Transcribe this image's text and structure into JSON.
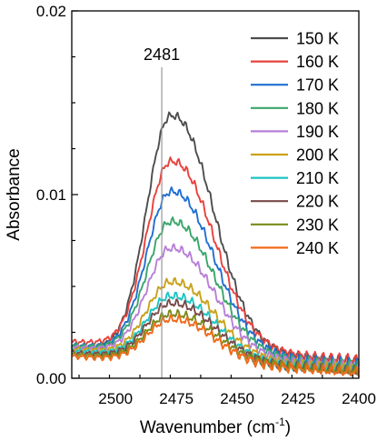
{
  "chart_data": {
    "type": "line",
    "xlabel": "Wavenumber (cm",
    "xlabel_sup": "-1",
    "xlabel_end": ")",
    "ylabel": "Absorbance",
    "xlim": [
      2518,
      2400
    ],
    "ylim": [
      0.0,
      0.02
    ],
    "x_reversed": true,
    "x_ticks": [
      2500,
      2475,
      2450,
      2425,
      2400
    ],
    "x_tick_labels": [
      "2500",
      "2475",
      "2450",
      "2425",
      "2400"
    ],
    "y_ticks": [
      0.0,
      0.01,
      0.02
    ],
    "y_tick_labels": [
      "0.00",
      "0.01",
      "0.02"
    ],
    "grid": false,
    "legend_position": "top-right",
    "reference_line": {
      "x": 2481,
      "label": "2481"
    },
    "peak_x": 2478,
    "series": [
      {
        "name": "150 K",
        "color": "#4d4d4d",
        "peak": 0.0148,
        "base_left": 0.0017,
        "base_right": 0.0009
      },
      {
        "name": "160 K",
        "color": "#e8413c",
        "peak": 0.0122,
        "base_left": 0.002,
        "base_right": 0.001
      },
      {
        "name": "170 K",
        "color": "#1f6fd1",
        "peak": 0.0105,
        "base_left": 0.0018,
        "base_right": 0.0008
      },
      {
        "name": "180 K",
        "color": "#3aa66a",
        "peak": 0.0088,
        "base_left": 0.0018,
        "base_right": 0.0007
      },
      {
        "name": "190 K",
        "color": "#b87fd8",
        "peak": 0.0073,
        "base_left": 0.0017,
        "base_right": 0.0006
      },
      {
        "name": "200 K",
        "color": "#c9a21a",
        "peak": 0.0054,
        "base_left": 0.0016,
        "base_right": 0.0005
      },
      {
        "name": "210 K",
        "color": "#1ec4c4",
        "peak": 0.0046,
        "base_left": 0.0015,
        "base_right": 0.0004
      },
      {
        "name": "220 K",
        "color": "#7a4a4a",
        "peak": 0.0042,
        "base_left": 0.0014,
        "base_right": 0.0004
      },
      {
        "name": "230 K",
        "color": "#7a8a1a",
        "peak": 0.0036,
        "base_left": 0.0013,
        "base_right": 0.0004
      },
      {
        "name": "240 K",
        "color": "#f06a1a",
        "peak": 0.0033,
        "base_left": 0.0012,
        "base_right": 0.0003
      }
    ]
  }
}
